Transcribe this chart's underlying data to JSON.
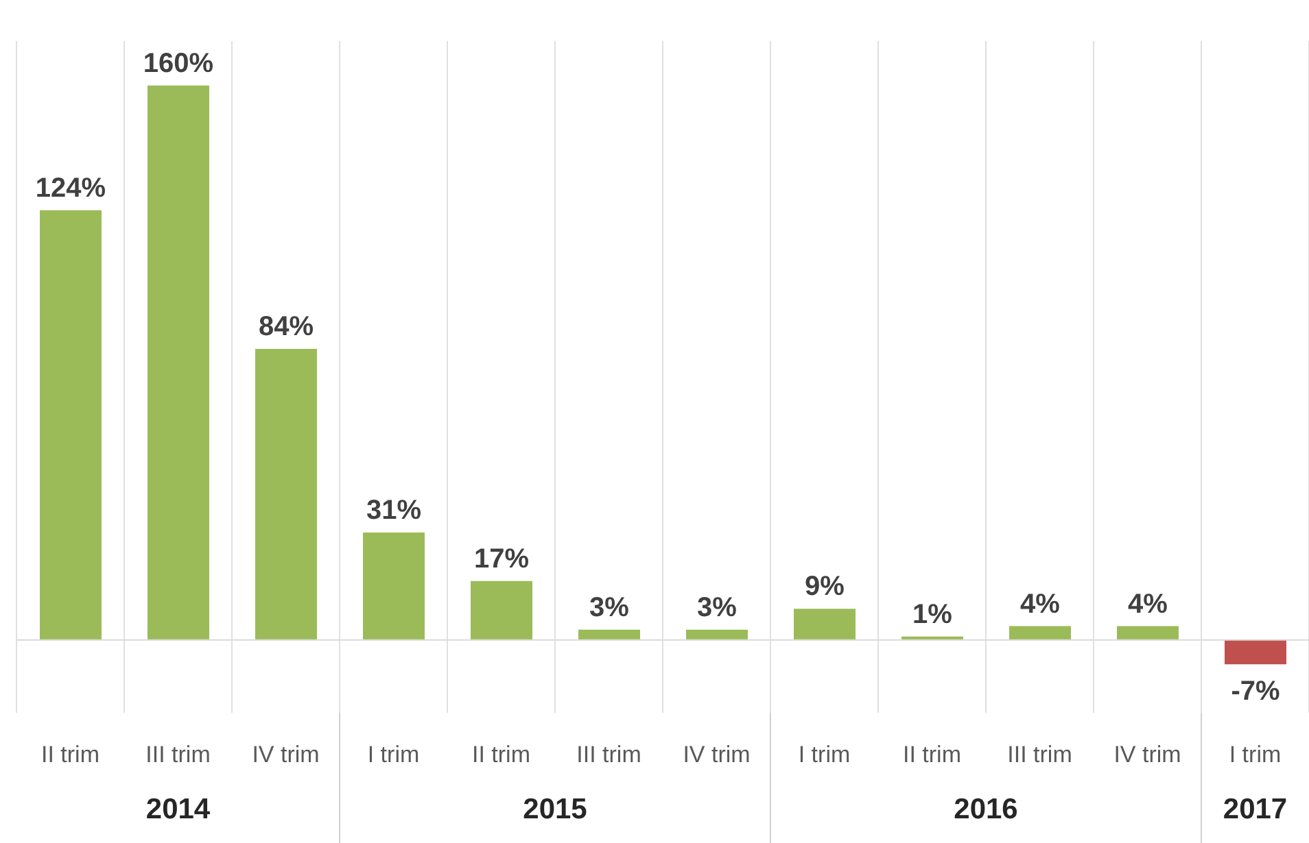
{
  "chart_data": {
    "type": "bar",
    "categories": [
      "II trim",
      "III trim",
      "IV trim",
      "I trim",
      "II trim",
      "III trim",
      "IV trim",
      "I trim",
      "II trim",
      "III trim",
      "IV trim",
      "I trim"
    ],
    "values": [
      124,
      160,
      84,
      31,
      17,
      3,
      3,
      9,
      1,
      4,
      4,
      -7
    ],
    "colors": [
      "#9bbb59",
      "#9bbb59",
      "#9bbb59",
      "#9bbb59",
      "#9bbb59",
      "#9bbb59",
      "#9bbb59",
      "#9bbb59",
      "#9bbb59",
      "#9bbb59",
      "#9bbb59",
      "#c0504d"
    ],
    "value_labels": [
      "124%",
      "160%",
      "84%",
      "31%",
      "17%",
      "3%",
      "3%",
      "9%",
      "1%",
      "4%",
      "4%",
      "-7%"
    ],
    "annotations": [
      "2014",
      "2015",
      "2016",
      "2017"
    ],
    "grid": "x"
  }
}
